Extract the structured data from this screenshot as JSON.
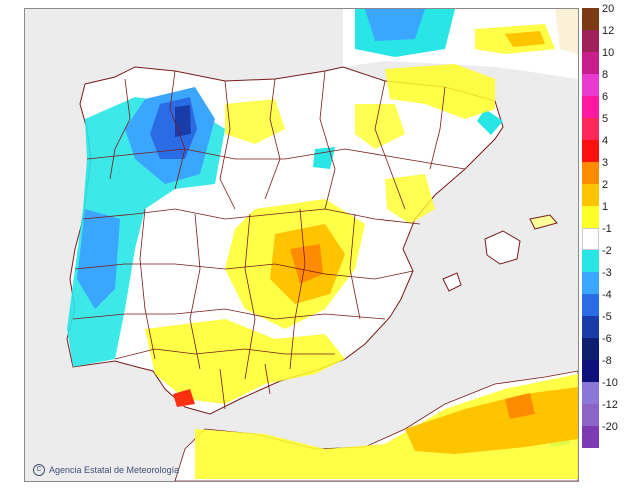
{
  "map": {
    "credit": "Agencia Estatal de Meteorología",
    "credit_icon": "copyright-icon",
    "colors": {
      "sea": "#ececec",
      "land": "#ffffff",
      "borders": "#7a1a1a",
      "france": "#fdf0d8"
    }
  },
  "legend": {
    "upper": [
      {
        "label": "20",
        "color": "#7a3a14"
      },
      {
        "label": "12",
        "color": "#a0205a"
      },
      {
        "label": "10",
        "color": "#c81e8c"
      },
      {
        "label": "8",
        "color": "#e83cd0"
      },
      {
        "label": "6",
        "color": "#ff18a0"
      },
      {
        "label": "5",
        "color": "#ff2858"
      },
      {
        "label": "4",
        "color": "#ff1010"
      },
      {
        "label": "3",
        "color": "#ff8c00"
      },
      {
        "label": "2",
        "color": "#ffc400"
      },
      {
        "label": "1",
        "color": "#ffff28"
      }
    ],
    "neutral": {
      "label": "-1",
      "color": "#ffffff"
    },
    "lower": [
      {
        "label": "-2",
        "color": "#28e6e6"
      },
      {
        "label": "-3",
        "color": "#3aa6ff"
      },
      {
        "label": "-4",
        "color": "#2a6ce6"
      },
      {
        "label": "-5",
        "color": "#1a3ca8"
      },
      {
        "label": "-6",
        "color": "#0e1e70"
      },
      {
        "label": "-8",
        "color": "#10107a"
      },
      {
        "label": "-10",
        "color": "#8a78d8"
      },
      {
        "label": "-12",
        "color": "#8c64c8"
      },
      {
        "label": "-20",
        "color": "#7a3cb0"
      }
    ]
  }
}
